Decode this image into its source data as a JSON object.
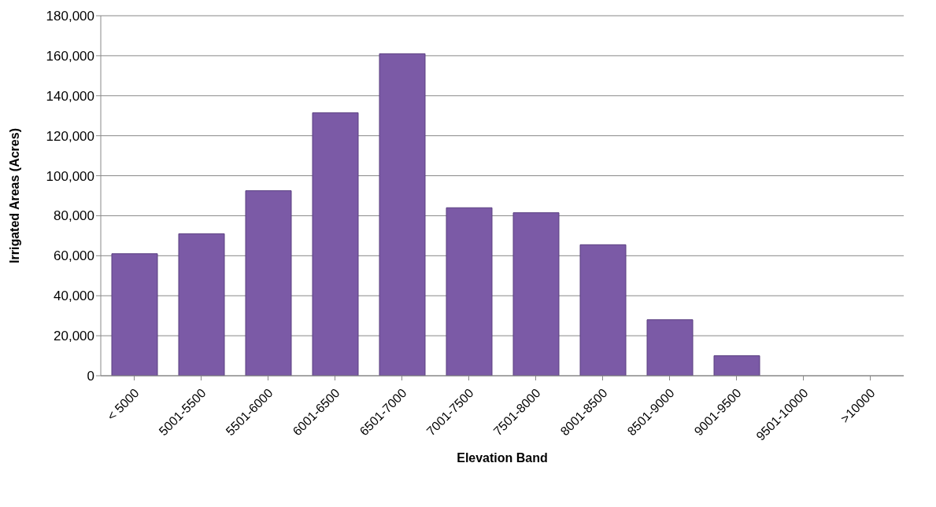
{
  "chart_data": {
    "type": "bar",
    "xlabel": "Elevation Band",
    "ylabel": "Irrigated Areas (Acres)",
    "categories": [
      "< 5000",
      "5001-5500",
      "5501-6000",
      "6001-6500",
      "6501-7000",
      "7001-7500",
      "7501-8000",
      "8001-8500",
      "8501-9000",
      "9001-9500",
      "9501-10000",
      ">10000"
    ],
    "values": [
      61000,
      71000,
      92500,
      131500,
      161000,
      84000,
      81500,
      65500,
      28000,
      10000,
      0,
      0
    ],
    "color": "#7b5aa6",
    "ylim": [
      0,
      180000
    ],
    "yticks": [
      0,
      {
        "value": 20000,
        "label": "20,000"
      },
      {
        "value": 40000,
        "label": "40,000"
      },
      {
        "value": 60000,
        "label": "60,000"
      },
      {
        "value": 80000,
        "label": "80,000"
      },
      {
        "value": 100000,
        "label": "100,000"
      },
      {
        "value": 120000,
        "label": "120,000"
      },
      {
        "value": 140000,
        "label": "140,000"
      },
      {
        "value": 160000,
        "label": "160,000"
      },
      {
        "value": 180000,
        "label": "180,000"
      }
    ],
    "grid": "y"
  }
}
